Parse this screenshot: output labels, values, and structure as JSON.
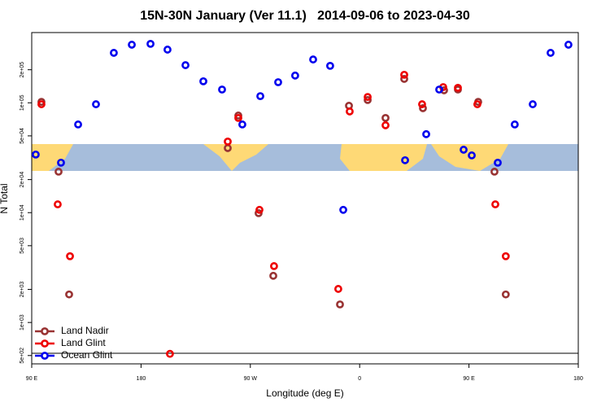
{
  "chart_data": {
    "type": "scatter",
    "title": "15N-30N January (Ver 11.1)   2014-09-06 to 2023-04-30",
    "x_label": "Longitude (deg E)",
    "y_label": "N Total",
    "xlim": [
      90,
      540
    ],
    "xticks": [
      {
        "value": 90,
        "label": "90 E"
      },
      {
        "value": 180,
        "label": "180"
      },
      {
        "value": 270,
        "label": "90 W"
      },
      {
        "value": 360,
        "label": "0"
      },
      {
        "value": 450,
        "label": "90 E"
      },
      {
        "value": 540,
        "label": "180"
      }
    ],
    "ylim": [
      420,
      436000
    ],
    "log_y": true,
    "yticks": [
      {
        "value": 500,
        "label": "5e+02"
      },
      {
        "value": 1000,
        "label": "1e+03"
      },
      {
        "value": 2000,
        "label": "2e+03"
      },
      {
        "value": 5000,
        "label": "5e+03"
      },
      {
        "value": 10000,
        "label": "1e+04"
      },
      {
        "value": 20000,
        "label": "2e+04"
      },
      {
        "value": 50000,
        "label": "5e+04"
      },
      {
        "value": 100000,
        "label": "1e+05"
      },
      {
        "value": 200000,
        "label": "2e+05"
      }
    ],
    "legend_position": "lower left",
    "series": [
      {
        "name": "Land Nadir",
        "color": "#993333",
        "x": [
          98.0,
          112.1,
          120.8,
          260.1,
          251.4,
          276.8,
          288.9,
          343.8,
          351.2,
          381.3,
          396.7,
          412.1,
          429.5,
          440.9,
          457.6,
          471.0,
          480.3,
          366.6
        ],
        "values": [
          102000,
          23600,
          1800,
          76600,
          38700,
          9890,
          2660,
          1460,
          94000,
          72800,
          165000,
          89300,
          130000,
          132000,
          102000,
          23600,
          1800,
          106000
        ]
      },
      {
        "name": "Land Glint",
        "color": "#ee0000",
        "x": [
          98.0,
          111.4,
          121.5,
          260.1,
          251.4,
          277.5,
          289.5,
          342.4,
          351.8,
          381.3,
          396.7,
          411.4,
          428.8,
          440.9,
          456.9,
          471.7,
          480.3,
          366.6,
          203.8
        ],
        "values": [
          97000,
          11900,
          4010,
          72800,
          44400,
          10600,
          3260,
          2020,
          83400,
          62400,
          180000,
          97000,
          139000,
          137000,
          97000,
          11900,
          4010,
          113000,
          518
        ]
      },
      {
        "name": "Ocean Glint",
        "color": "#0000ee",
        "x": [
          93.3,
          114.1,
          128.2,
          142.9,
          157.6,
          172.4,
          187.8,
          201.8,
          216.6,
          231.3,
          246.7,
          263.4,
          278.2,
          292.9,
          306.9,
          321.7,
          335.7,
          346.5,
          397.4,
          414.8,
          425.5,
          445.6,
          452.3,
          473.7,
          487.7,
          502.5,
          517.2,
          531.9
        ],
        "values": [
          33800,
          28500,
          63500,
          97000,
          285000,
          338000,
          344000,
          305000,
          220000,
          157000,
          132000,
          63500,
          115000,
          154000,
          177000,
          248000,
          217000,
          10600,
          30000,
          51800,
          132000,
          37400,
          33200,
          28500,
          63500,
          97000,
          285000,
          338000
        ]
      }
    ]
  }
}
